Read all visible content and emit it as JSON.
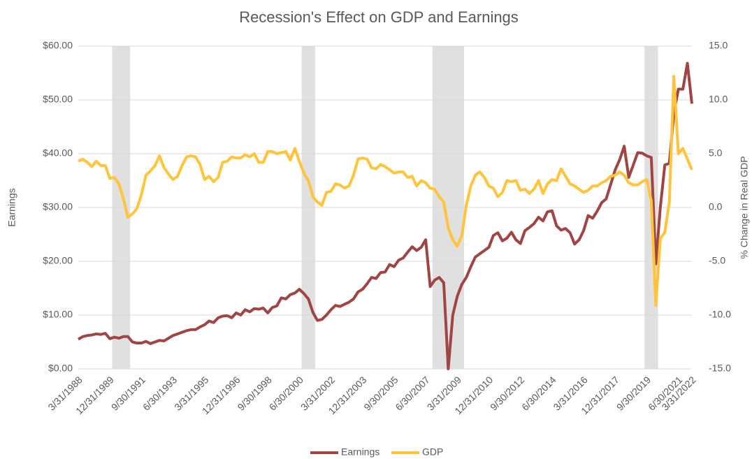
{
  "chart_data": {
    "type": "line",
    "title": "Recession's Effect on GDP and Earnings",
    "y_label": "Earnings",
    "y2_label": "% Change in Real GDP",
    "categories": [
      "3/31/1988",
      null,
      null,
      null,
      null,
      null,
      null,
      "12/31/1989",
      null,
      null,
      null,
      null,
      null,
      null,
      "9/30/1991",
      null,
      null,
      null,
      null,
      null,
      null,
      "6/30/1993",
      null,
      null,
      null,
      null,
      null,
      null,
      "3/31/1995",
      null,
      null,
      null,
      null,
      null,
      null,
      "12/31/1996",
      null,
      null,
      null,
      null,
      null,
      null,
      "9/30/1998",
      null,
      null,
      null,
      null,
      null,
      null,
      "6/30/2000",
      null,
      null,
      null,
      null,
      null,
      null,
      "3/31/2002",
      null,
      null,
      null,
      null,
      null,
      null,
      "12/31/2003",
      null,
      null,
      null,
      null,
      null,
      null,
      "9/30/2005",
      null,
      null,
      null,
      null,
      null,
      null,
      "6/30/2007",
      null,
      null,
      null,
      null,
      null,
      null,
      "3/31/2009",
      null,
      null,
      null,
      null,
      null,
      null,
      "12/31/2010",
      null,
      null,
      null,
      null,
      null,
      null,
      "9/30/2012",
      null,
      null,
      null,
      null,
      null,
      null,
      "6/30/2014",
      null,
      null,
      null,
      null,
      null,
      null,
      "3/31/2016",
      null,
      null,
      null,
      null,
      null,
      null,
      "12/31/2017",
      null,
      null,
      null,
      null,
      null,
      null,
      "9/30/2019",
      null,
      null,
      null,
      null,
      null,
      null,
      "6/30/2021",
      null,
      null,
      "3/31/2022"
    ],
    "series": [
      {
        "name": "Earnings",
        "color": "#a04444",
        "values": [
          5.5,
          6.0,
          6.2,
          6.3,
          6.5,
          6.4,
          6.6,
          5.6,
          5.9,
          5.7,
          6.0,
          6.0,
          5.0,
          4.8,
          4.8,
          5.1,
          4.7,
          5.0,
          5.3,
          5.2,
          5.7,
          6.2,
          6.5,
          6.8,
          7.1,
          7.3,
          7.3,
          7.8,
          8.2,
          8.9,
          8.6,
          9.5,
          9.8,
          9.9,
          9.5,
          10.4,
          10.0,
          11.0,
          10.6,
          11.2,
          11.1,
          11.3,
          10.4,
          11.4,
          11.7,
          13.2,
          13.0,
          13.8,
          14.1,
          14.8,
          14.0,
          13.0,
          10.5,
          9.0,
          9.2,
          10.0,
          11.0,
          11.8,
          11.6,
          12.0,
          12.4,
          13.0,
          14.3,
          14.8,
          15.8,
          17.0,
          16.8,
          17.9,
          18.0,
          19.4,
          19.0,
          20.2,
          20.6,
          21.7,
          22.7,
          22.0,
          22.6,
          24.0,
          15.3,
          16.5,
          17.0,
          16.0,
          0.0,
          10.0,
          13.5,
          15.7,
          17.0,
          19.0,
          20.8,
          21.4,
          22.0,
          22.6,
          24.8,
          25.3,
          23.8,
          24.3,
          25.4,
          24.0,
          23.3,
          25.7,
          26.3,
          27.0,
          28.2,
          27.5,
          29.2,
          29.4,
          26.6,
          25.8,
          26.1,
          25.3,
          23.2,
          24.0,
          25.7,
          28.5,
          28.0,
          29.3,
          30.9,
          31.6,
          34.3,
          37.0,
          38.9,
          41.4,
          35.6,
          37.9,
          40.2,
          40.1,
          39.6,
          39.3,
          19.5,
          30.0,
          37.9,
          38.2,
          47.5,
          52.0,
          52.0,
          56.8,
          49.3
        ]
      },
      {
        "name": "GDP",
        "color": "#ffc43a",
        "axis": "y2",
        "values": [
          4.3,
          4.5,
          4.2,
          3.8,
          4.3,
          3.9,
          3.9,
          2.7,
          2.8,
          2.2,
          0.8,
          -0.9,
          -0.6,
          -0.1,
          1.2,
          3.0,
          3.4,
          3.9,
          4.8,
          3.7,
          3.1,
          2.6,
          2.9,
          3.9,
          4.7,
          4.8,
          4.7,
          4.0,
          2.6,
          2.9,
          2.4,
          2.8,
          4.2,
          4.3,
          4.7,
          4.6,
          4.6,
          4.9,
          4.7,
          5.0,
          4.2,
          4.2,
          5.2,
          5.2,
          5.0,
          5.1,
          5.2,
          4.4,
          5.5,
          4.3,
          3.2,
          2.5,
          1.0,
          0.5,
          0.2,
          1.4,
          1.5,
          2.2,
          2.1,
          1.8,
          2.0,
          3.0,
          4.5,
          4.6,
          4.5,
          3.7,
          3.6,
          4.0,
          3.8,
          3.5,
          3.2,
          3.3,
          3.3,
          2.8,
          2.9,
          2.0,
          2.5,
          2.3,
          1.8,
          1.7,
          1.0,
          0.5,
          -1.9,
          -3.0,
          -3.6,
          -2.6,
          0.2,
          2.0,
          3.0,
          3.3,
          2.8,
          2.0,
          1.8,
          1.0,
          1.4,
          2.5,
          2.4,
          2.5,
          1.6,
          1.7,
          1.3,
          1.7,
          2.5,
          1.3,
          2.2,
          2.6,
          2.5,
          3.6,
          2.9,
          2.2,
          2.0,
          1.7,
          1.4,
          1.6,
          2.0,
          2.0,
          2.3,
          2.5,
          2.9,
          3.0,
          3.3,
          3.0,
          2.3,
          2.1,
          2.1,
          2.4,
          2.6,
          0.6,
          -9.1,
          -2.9,
          -2.3,
          0.5,
          12.2,
          5.0,
          5.5,
          4.5,
          3.5
        ]
      }
    ],
    "ylim": [
      0,
      60
    ],
    "yticks": [
      {
        "value": 0,
        "label": "$0.00"
      },
      {
        "value": 10,
        "label": "$10.00"
      },
      {
        "value": 20,
        "label": "$20.00"
      },
      {
        "value": 30,
        "label": "$30.00"
      },
      {
        "value": 40,
        "label": "$40.00"
      },
      {
        "value": 50,
        "label": "$50.00"
      },
      {
        "value": 60,
        "label": "$60.00"
      }
    ],
    "y2lim": [
      -15,
      15
    ],
    "y2ticks": [
      {
        "value": -15,
        "label": "-15.0"
      },
      {
        "value": -10,
        "label": "-10.0"
      },
      {
        "value": -5,
        "label": "-5.0"
      },
      {
        "value": 0,
        "label": "0.0"
      },
      {
        "value": 5,
        "label": "5.0"
      },
      {
        "value": 10,
        "label": "10.0"
      },
      {
        "value": 15,
        "label": "15.0"
      }
    ],
    "grid": true,
    "legend": "bottom",
    "shaded_periods": [
      [
        8,
        11
      ],
      [
        50,
        52
      ],
      [
        79,
        85
      ],
      [
        126,
        128
      ]
    ],
    "shade_color": "#e0e0e0"
  }
}
